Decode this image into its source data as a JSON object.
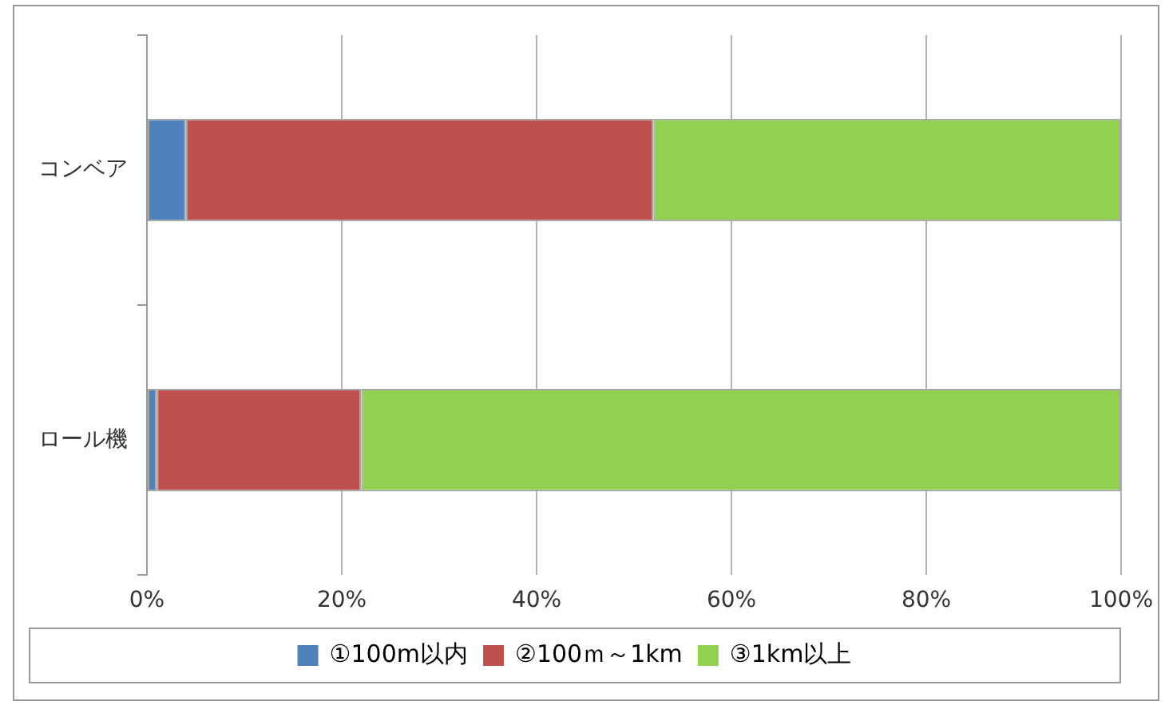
{
  "chart_data": {
    "type": "bar",
    "orientation": "horizontal",
    "stacked": true,
    "categories": [
      "コンベア",
      "ロール機"
    ],
    "series": [
      {
        "name": "①100m以内",
        "color": "#4f81bd",
        "values": [
          4,
          1
        ]
      },
      {
        "name": "②100ｍ～1km",
        "color": "#c0504d",
        "values": [
          48,
          21
        ]
      },
      {
        "name": "③1km以上",
        "color": "#92d050",
        "values": [
          48,
          78
        ]
      }
    ],
    "xlim": [
      0,
      100
    ],
    "xticks": [
      {
        "value": 0,
        "label": "0%"
      },
      {
        "value": 20,
        "label": "20%"
      },
      {
        "value": 40,
        "label": "40%"
      },
      {
        "value": 60,
        "label": "60%"
      },
      {
        "value": 80,
        "label": "80%"
      },
      {
        "value": 100,
        "label": "100%"
      }
    ],
    "grid": "x",
    "legend": "bottom"
  }
}
